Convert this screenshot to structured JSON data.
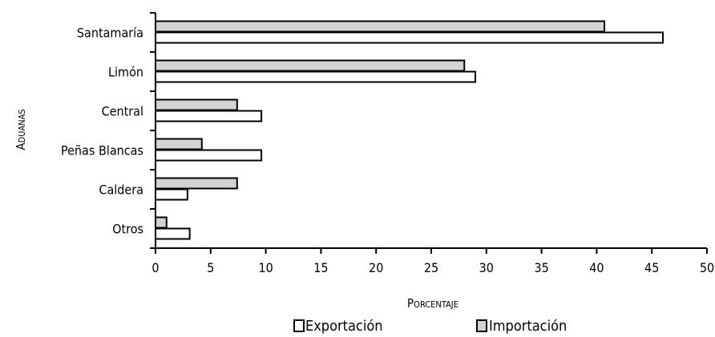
{
  "chart_data": {
    "type": "bar",
    "orientation": "horizontal",
    "categories": [
      "Santamaría",
      "Limón",
      "Central",
      "Peñas Blancas",
      "Caldera",
      "Otros"
    ],
    "series": [
      {
        "name": "Importación",
        "values": [
          40.7,
          28.0,
          7.4,
          4.2,
          7.4,
          1.0
        ],
        "color": "#d3d3d3"
      },
      {
        "name": "Exportación",
        "values": [
          46.0,
          29.0,
          9.6,
          9.6,
          2.9,
          3.1
        ],
        "color": "#ffffff"
      }
    ],
    "xlabel": "Porcentaje",
    "ylabel": "Aduanas",
    "xlim": [
      0,
      50
    ],
    "xticks": [
      0,
      5,
      10,
      15,
      20,
      25,
      30,
      35,
      40,
      45,
      50
    ],
    "grid": false,
    "legend": {
      "placement": "bottom",
      "entries": [
        {
          "label": "Exportación",
          "color": "#ffffff"
        },
        {
          "label": "Importación",
          "color": "#d3d3d3"
        }
      ]
    }
  }
}
